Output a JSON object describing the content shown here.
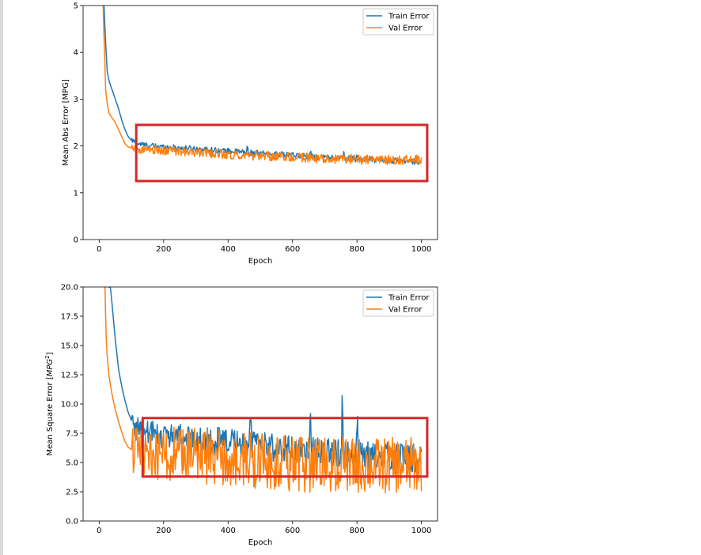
{
  "colors": {
    "train": "#1f77b4",
    "val": "#ff7f0e",
    "highlight": "#d62728",
    "frame": "#000000"
  },
  "chart_data": [
    {
      "type": "line",
      "id": "mae",
      "xlabel": "Epoch",
      "ylabel": "Mean Abs Error [MPG]",
      "xlim": [
        -50,
        1050
      ],
      "ylim": [
        0,
        5
      ],
      "xticks": [
        0,
        200,
        400,
        600,
        800,
        1000
      ],
      "xtick_labels": [
        "0",
        "200",
        "400",
        "600",
        "800",
        "1000"
      ],
      "yticks": [
        0,
        1,
        2,
        3,
        4,
        5
      ],
      "ytick_labels": [
        "0",
        "1",
        "2",
        "3",
        "4",
        "5"
      ],
      "legend": {
        "location": "upper right",
        "entries": [
          "Train Error",
          "Val Error"
        ]
      },
      "series": [
        {
          "name": "Train Error",
          "color_key": "train",
          "noise": 0.012,
          "x": [
            15,
            20,
            25,
            30,
            40,
            50,
            60,
            70,
            80,
            90,
            100,
            120,
            150,
            200,
            300,
            400,
            500,
            600,
            700,
            800,
            900,
            1000
          ],
          "y": [
            5.0,
            4.2,
            3.6,
            3.4,
            3.2,
            3.0,
            2.8,
            2.55,
            2.35,
            2.2,
            2.12,
            2.05,
            2.01,
            1.98,
            1.94,
            1.89,
            1.84,
            1.8,
            1.76,
            1.72,
            1.69,
            1.66
          ],
          "spikes": [
            [
              460,
              0.06
            ],
            [
              655,
              0.08
            ],
            [
              760,
              0.07
            ],
            [
              800,
              0.05
            ]
          ]
        },
        {
          "name": "Val Error",
          "color_key": "val",
          "noise": 0.02,
          "x": [
            12,
            15,
            18,
            20,
            25,
            30,
            40,
            50,
            60,
            70,
            80,
            90,
            100,
            120,
            150,
            200,
            300,
            400,
            500,
            600,
            700,
            800,
            900,
            1000
          ],
          "y": [
            5.0,
            4.3,
            3.7,
            3.2,
            2.9,
            2.7,
            2.6,
            2.5,
            2.35,
            2.2,
            2.05,
            1.98,
            1.96,
            1.94,
            1.93,
            1.9,
            1.86,
            1.82,
            1.78,
            1.76,
            1.73,
            1.71,
            1.7,
            1.71
          ],
          "spikes": []
        }
      ],
      "highlight_box": {
        "x": [
          115,
          1018
        ],
        "y": [
          1.25,
          2.45
        ]
      }
    },
    {
      "type": "line",
      "id": "mse",
      "xlabel": "Epoch",
      "ylabel": "Mean Square Error [",
      "ylabel_italic": "MPG",
      "ylabel_sup": "2",
      "ylabel_end": "]",
      "xlim": [
        -50,
        1050
      ],
      "ylim": [
        0,
        20
      ],
      "xticks": [
        0,
        200,
        400,
        600,
        800,
        1000
      ],
      "xtick_labels": [
        "0",
        "200",
        "400",
        "600",
        "800",
        "1000"
      ],
      "yticks": [
        0,
        2.5,
        5,
        7.5,
        10,
        12.5,
        15,
        17.5,
        20
      ],
      "ytick_labels": [
        "0.0",
        "2.5",
        "5.0",
        "7.5",
        "10.0",
        "12.5",
        "15.0",
        "17.5",
        "20.0"
      ],
      "legend": {
        "location": "upper right",
        "entries": [
          "Train Error",
          "Val Error"
        ]
      },
      "series": [
        {
          "name": "Train Error",
          "color_key": "train",
          "noise": 0.06,
          "x": [
            28,
            35,
            40,
            45,
            50,
            60,
            70,
            80,
            90,
            100,
            110,
            120,
            140,
            160,
            200,
            300,
            400,
            500,
            600,
            700,
            800,
            900,
            1000
          ],
          "y": [
            20.0,
            20.0,
            18.5,
            17.0,
            15.5,
            13.0,
            11.5,
            10.3,
            9.3,
            8.6,
            8.1,
            7.9,
            7.6,
            7.5,
            7.3,
            7.0,
            6.7,
            6.4,
            6.1,
            5.9,
            5.7,
            5.5,
            5.35
          ],
          "spikes": [
            [
              470,
              0.45
            ],
            [
              655,
              0.6
            ],
            [
              755,
              0.7
            ],
            [
              800,
              0.35
            ]
          ]
        },
        {
          "name": "Val Error",
          "color_key": "val",
          "noise": 0.12,
          "x": [
            18,
            20,
            22,
            25,
            30,
            40,
            50,
            60,
            70,
            80,
            90,
            100,
            110,
            120,
            150,
            200,
            300,
            400,
            500,
            600,
            700,
            800,
            900,
            1000
          ],
          "y": [
            20.0,
            17.5,
            15.5,
            14.0,
            12.5,
            10.8,
            9.5,
            8.5,
            7.6,
            6.8,
            6.3,
            6.1,
            6.0,
            5.95,
            5.9,
            5.8,
            5.6,
            5.35,
            5.1,
            4.9,
            4.8,
            4.75,
            4.75,
            4.8
          ],
          "spikes": []
        }
      ],
      "highlight_box": {
        "x": [
          135,
          1018
        ],
        "y": [
          3.8,
          8.8
        ]
      }
    }
  ]
}
